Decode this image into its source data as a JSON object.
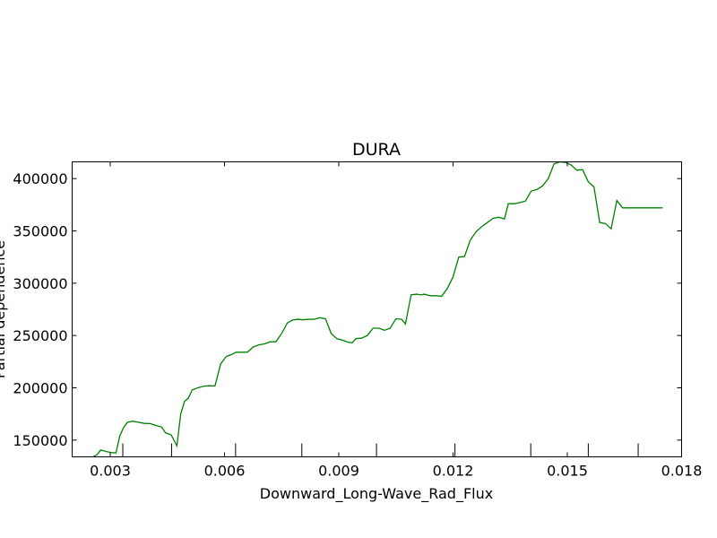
{
  "chart_data": {
    "type": "line",
    "title": "DURA",
    "xlabel": "Downward_Long-Wave_Rad_Flux",
    "ylabel": "Partial dependence",
    "xlim": [
      0.002,
      0.018
    ],
    "ylim": [
      134000,
      416000
    ],
    "xticks": [
      0.003,
      0.006,
      0.009,
      0.012,
      0.015,
      0.018
    ],
    "xtick_labels": [
      "0.003",
      "0.006",
      "0.009",
      "0.012",
      "0.015",
      "0.018"
    ],
    "yticks": [
      150000,
      200000,
      250000,
      300000,
      350000,
      400000
    ],
    "ytick_labels": [
      "150000",
      "200000",
      "250000",
      "300000",
      "350000",
      "400000"
    ],
    "deciles": [
      0.00333,
      0.00461,
      0.00629,
      0.00803,
      0.00999,
      0.01205,
      0.01404,
      0.01555,
      0.01686
    ],
    "grid": false,
    "color": "#008000",
    "series": [
      {
        "x": [
          0.00255,
          0.00265,
          0.00275,
          0.0029,
          0.00305,
          0.00315,
          0.00325,
          0.00335,
          0.00345,
          0.0036,
          0.00375,
          0.0039,
          0.00405,
          0.0042,
          0.00435,
          0.00445,
          0.0046,
          0.00475,
          0.00485,
          0.00495,
          0.00505,
          0.00515,
          0.0053,
          0.00545,
          0.0056,
          0.00575,
          0.0059,
          0.00605,
          0.0062,
          0.0063,
          0.00645,
          0.0066,
          0.00675,
          0.0069,
          0.00705,
          0.0072,
          0.00735,
          0.0075,
          0.00765,
          0.0078,
          0.00795,
          0.00805,
          0.0082,
          0.00835,
          0.0085,
          0.00865,
          0.0088,
          0.00895,
          0.0091,
          0.00925,
          0.00935,
          0.00945,
          0.0096,
          0.00975,
          0.0099,
          0.01005,
          0.0102,
          0.01035,
          0.0105,
          0.01065,
          0.01075,
          0.0109,
          0.01105,
          0.01115,
          0.01125,
          0.0114,
          0.01155,
          0.0117,
          0.01185,
          0.012,
          0.01215,
          0.0123,
          0.01245,
          0.0126,
          0.01275,
          0.0129,
          0.01305,
          0.0132,
          0.01335,
          0.01345,
          0.0136,
          0.01375,
          0.0139,
          0.01405,
          0.0142,
          0.01435,
          0.0145,
          0.01465,
          0.0148,
          0.01495,
          0.0151,
          0.01525,
          0.0154,
          0.01555,
          0.0157,
          0.01585,
          0.016,
          0.01615,
          0.0163,
          0.01645,
          0.0166,
          0.01675,
          0.0169,
          0.01705,
          0.0172,
          0.01735,
          0.0175
        ],
        "y": [
          134000,
          136000,
          140500,
          139000,
          138000,
          137800,
          154000,
          162000,
          167000,
          168000,
          167000,
          166000,
          165800,
          164000,
          162500,
          157000,
          155000,
          144500,
          175000,
          187000,
          190000,
          198000,
          200000,
          201500,
          202000,
          201800,
          223000,
          230000,
          232000,
          234000,
          234000,
          234000,
          239000,
          241000,
          242000,
          244000,
          244000,
          252000,
          262000,
          265000,
          265500,
          265000,
          265500,
          265500,
          267000,
          266000,
          252000,
          247000,
          245500,
          243500,
          243000,
          247000,
          247500,
          250000,
          257000,
          257000,
          255000,
          257000,
          266000,
          265500,
          261000,
          289000,
          289500,
          288800,
          289500,
          288000,
          288000,
          287500,
          295000,
          306000,
          325000,
          325500,
          341000,
          349000,
          354000,
          358000,
          362000,
          363000,
          361500,
          376000,
          376000,
          377000,
          378500,
          388000,
          389500,
          393000,
          400000,
          414000,
          416000,
          415500,
          413000,
          408000,
          408500,
          397000,
          392000,
          358000,
          357000,
          352000,
          379000,
          372000,
          372000,
          372000,
          372000,
          372000,
          372000,
          372000,
          372000
        ]
      }
    ]
  }
}
